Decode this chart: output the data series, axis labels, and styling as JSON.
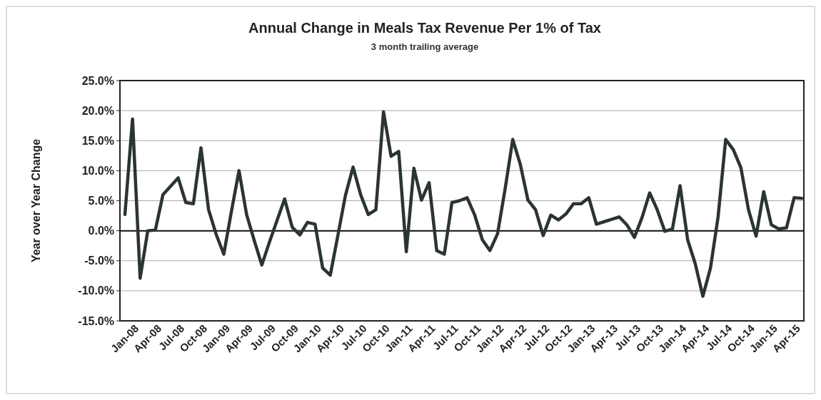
{
  "chart_data": {
    "type": "line",
    "title": "Annual Change in Meals Tax Revenue Per 1% of Tax",
    "subtitle": "3 month trailing average",
    "ylabel": "Year over Year Change",
    "categories": [
      "Jan-08",
      null,
      null,
      "Apr-08",
      null,
      null,
      "Jul-08",
      null,
      null,
      "Oct-08",
      null,
      null,
      "Jan-09",
      null,
      null,
      "Apr-09",
      null,
      null,
      "Jul-09",
      null,
      null,
      "Oct-09",
      null,
      null,
      "Jan-10",
      null,
      null,
      "Apr-10",
      null,
      null,
      "Jul-10",
      null,
      null,
      "Oct-10",
      null,
      null,
      "Jan-11",
      null,
      null,
      "Apr-11",
      null,
      null,
      "Jul-11",
      null,
      null,
      "Oct-11",
      null,
      null,
      "Jan-12",
      null,
      null,
      "Apr-12",
      null,
      null,
      "Jul-12",
      null,
      null,
      "Oct-12",
      null,
      null,
      "Jan-13",
      null,
      null,
      "Apr-13",
      null,
      null,
      "Jul-13",
      null,
      null,
      "Oct-13",
      null,
      null,
      "Jan-14",
      null,
      null,
      "Apr-14",
      null,
      null,
      "Jul-14",
      null,
      null,
      "Oct-14",
      null,
      null,
      "Jan-15",
      null,
      null,
      "Apr-15",
      null,
      null
    ],
    "series": [
      {
        "color": "#2b3530",
        "values": [
          2.7,
          18.6,
          -7.9,
          0,
          0.1,
          6.0,
          7.4,
          8.8,
          4.7,
          4.5,
          13.8,
          3.5,
          -0.6,
          -3.9,
          3.2,
          10.0,
          2.7,
          -1.6,
          -5.7,
          -1.9,
          1.7,
          5.3,
          0.6,
          -0.7,
          1.4,
          1.1,
          -6.2,
          -7.4,
          -0.8,
          5.9,
          10.6,
          6.0,
          2.7,
          3.5,
          19.8,
          12.4,
          13.2,
          -3.5,
          10.4,
          5.1,
          8.0,
          -3.3,
          -3.9,
          4.7,
          5.0,
          5.5,
          2.6,
          -1.5,
          -3.3,
          -0.5,
          7.0,
          15.2,
          11.0,
          5.1,
          3.5,
          -0.8,
          2.6,
          1.8,
          2.8,
          4.5,
          4.5,
          5.5,
          1.1,
          1.5,
          1.9,
          2.3,
          1.0,
          -1.1,
          2.2,
          6.3,
          3.5,
          -0.1,
          0.3,
          7.5,
          -1.5,
          -5.5,
          -10.9,
          -6.2,
          2.3,
          15.2,
          13.5,
          10.5,
          3.5,
          -0.9,
          6.5,
          1.0,
          0.3,
          0.5,
          5.5,
          5.4
        ]
      }
    ],
    "ylim": [
      -15,
      25
    ],
    "yticks": [
      {
        "value": -15,
        "label": "-15.0%"
      },
      {
        "value": -10,
        "label": "-10.0%"
      },
      {
        "value": -5,
        "label": "-5.0%"
      },
      {
        "value": 0,
        "label": "0.0%"
      },
      {
        "value": 5,
        "label": "5.0%"
      },
      {
        "value": 10,
        "label": "10.0%"
      },
      {
        "value": 15,
        "label": "15.0%"
      },
      {
        "value": 20,
        "label": "20.0%"
      },
      {
        "value": 25,
        "label": "25.0%"
      }
    ],
    "grid": "y",
    "marker": "none",
    "line_style": "solid"
  }
}
